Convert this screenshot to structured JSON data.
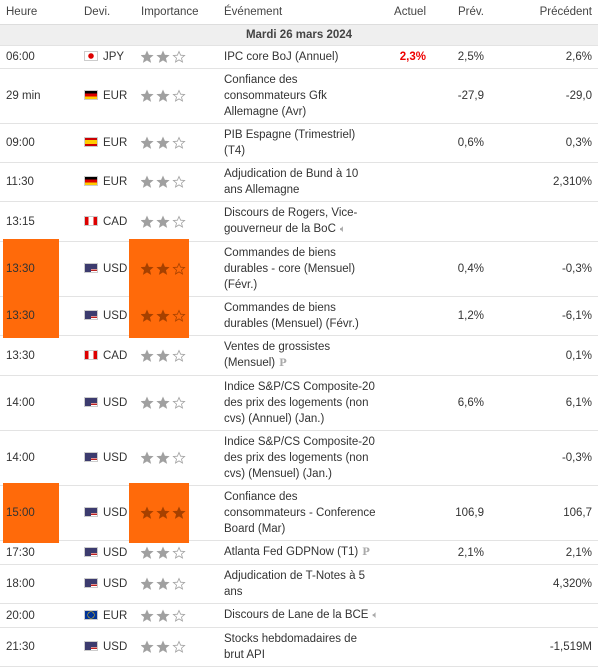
{
  "header": {
    "columns": [
      "Heure",
      "Devi.",
      "Importance",
      "Événement",
      "Actuel",
      "Prév.",
      "Précédent"
    ]
  },
  "date": "Mardi 26 mars 2024",
  "rows": [
    {
      "time": "06:00",
      "flag": "jp",
      "currency": "JPY",
      "importance": 2,
      "event": "IPC core BoJ (Annuel)",
      "actual": "2,3%",
      "forecast": "2,5%",
      "previous": "2,6%"
    },
    {
      "time": "29 min",
      "flag": "de",
      "currency": "EUR",
      "importance": 2,
      "event": "Confiance des consommateurs Gfk Allemagne (Avr)",
      "actual": null,
      "forecast": "-27,9",
      "previous": "-29,0"
    },
    {
      "time": "09:00",
      "flag": "es",
      "currency": "EUR",
      "importance": 2,
      "event": "PIB Espagne (Trimestriel) (T4)",
      "actual": null,
      "forecast": "0,6%",
      "previous": "0,3%"
    },
    {
      "time": "11:30",
      "flag": "de",
      "currency": "EUR",
      "importance": 2,
      "event": "Adjudication de Bund à 10 ans Allemagne",
      "actual": null,
      "forecast": null,
      "previous": "2,310%"
    },
    {
      "time": "13:15",
      "flag": "ca",
      "currency": "CAD",
      "importance": 2,
      "event": "Discours de Rogers, Vice-gouverneur de la BoC",
      "icon": "speaker",
      "actual": null,
      "forecast": null,
      "previous": null
    },
    {
      "time": "13:30",
      "flag": "us",
      "currency": "USD",
      "importance": 2,
      "highlight": true,
      "event": "Commandes de biens durables - core (Mensuel) (Févr.)",
      "actual": null,
      "forecast": "0,4%",
      "previous": "-0,3%"
    },
    {
      "time": "13:30",
      "flag": "us",
      "currency": "USD",
      "importance": 2,
      "highlight": true,
      "event": "Commandes de biens durables (Mensuel) (Févr.)",
      "actual": null,
      "forecast": "1,2%",
      "previous": "-6,1%"
    },
    {
      "time": "13:30",
      "flag": "ca",
      "currency": "CAD",
      "importance": 2,
      "event": "Ventes de grossistes (Mensuel)",
      "icon": "preliminary",
      "actual": null,
      "forecast": null,
      "previous": "0,1%"
    },
    {
      "time": "14:00",
      "flag": "us",
      "currency": "USD",
      "importance": 2,
      "event": "Indice S&P/CS Composite-20 des prix des logements (non cvs) (Annuel) (Jan.)",
      "actual": null,
      "forecast": "6,6%",
      "previous": "6,1%"
    },
    {
      "time": "14:00",
      "flag": "us",
      "currency": "USD",
      "importance": 2,
      "event": "Indice S&P/CS Composite-20 des prix des logements (non cvs) (Mensuel) (Jan.)",
      "actual": null,
      "forecast": null,
      "previous": "-0,3%"
    },
    {
      "time": "15:00",
      "flag": "us",
      "currency": "USD",
      "importance": 3,
      "highlight": true,
      "event": "Confiance des consommateurs - Conference Board (Mar)",
      "actual": null,
      "forecast": "106,9",
      "previous": "106,7"
    },
    {
      "time": "17:30",
      "flag": "us",
      "currency": "USD",
      "importance": 2,
      "event": "Atlanta Fed GDPNow (T1)",
      "icon": "preliminary",
      "actual": null,
      "forecast": "2,1%",
      "previous": "2,1%"
    },
    {
      "time": "18:00",
      "flag": "us",
      "currency": "USD",
      "importance": 2,
      "event": "Adjudication de T-Notes à 5 ans",
      "actual": null,
      "forecast": null,
      "previous": "4,320%"
    },
    {
      "time": "20:00",
      "flag": "eu",
      "currency": "EUR",
      "importance": 2,
      "event": "Discours de Lane de la BCE",
      "icon": "speaker",
      "actual": null,
      "forecast": null,
      "previous": null
    },
    {
      "time": "21:30",
      "flag": "us",
      "currency": "USD",
      "importance": 2,
      "event": "Stocks hebdomadaires de brut API",
      "actual": null,
      "forecast": null,
      "previous": "-1,519M"
    }
  ]
}
